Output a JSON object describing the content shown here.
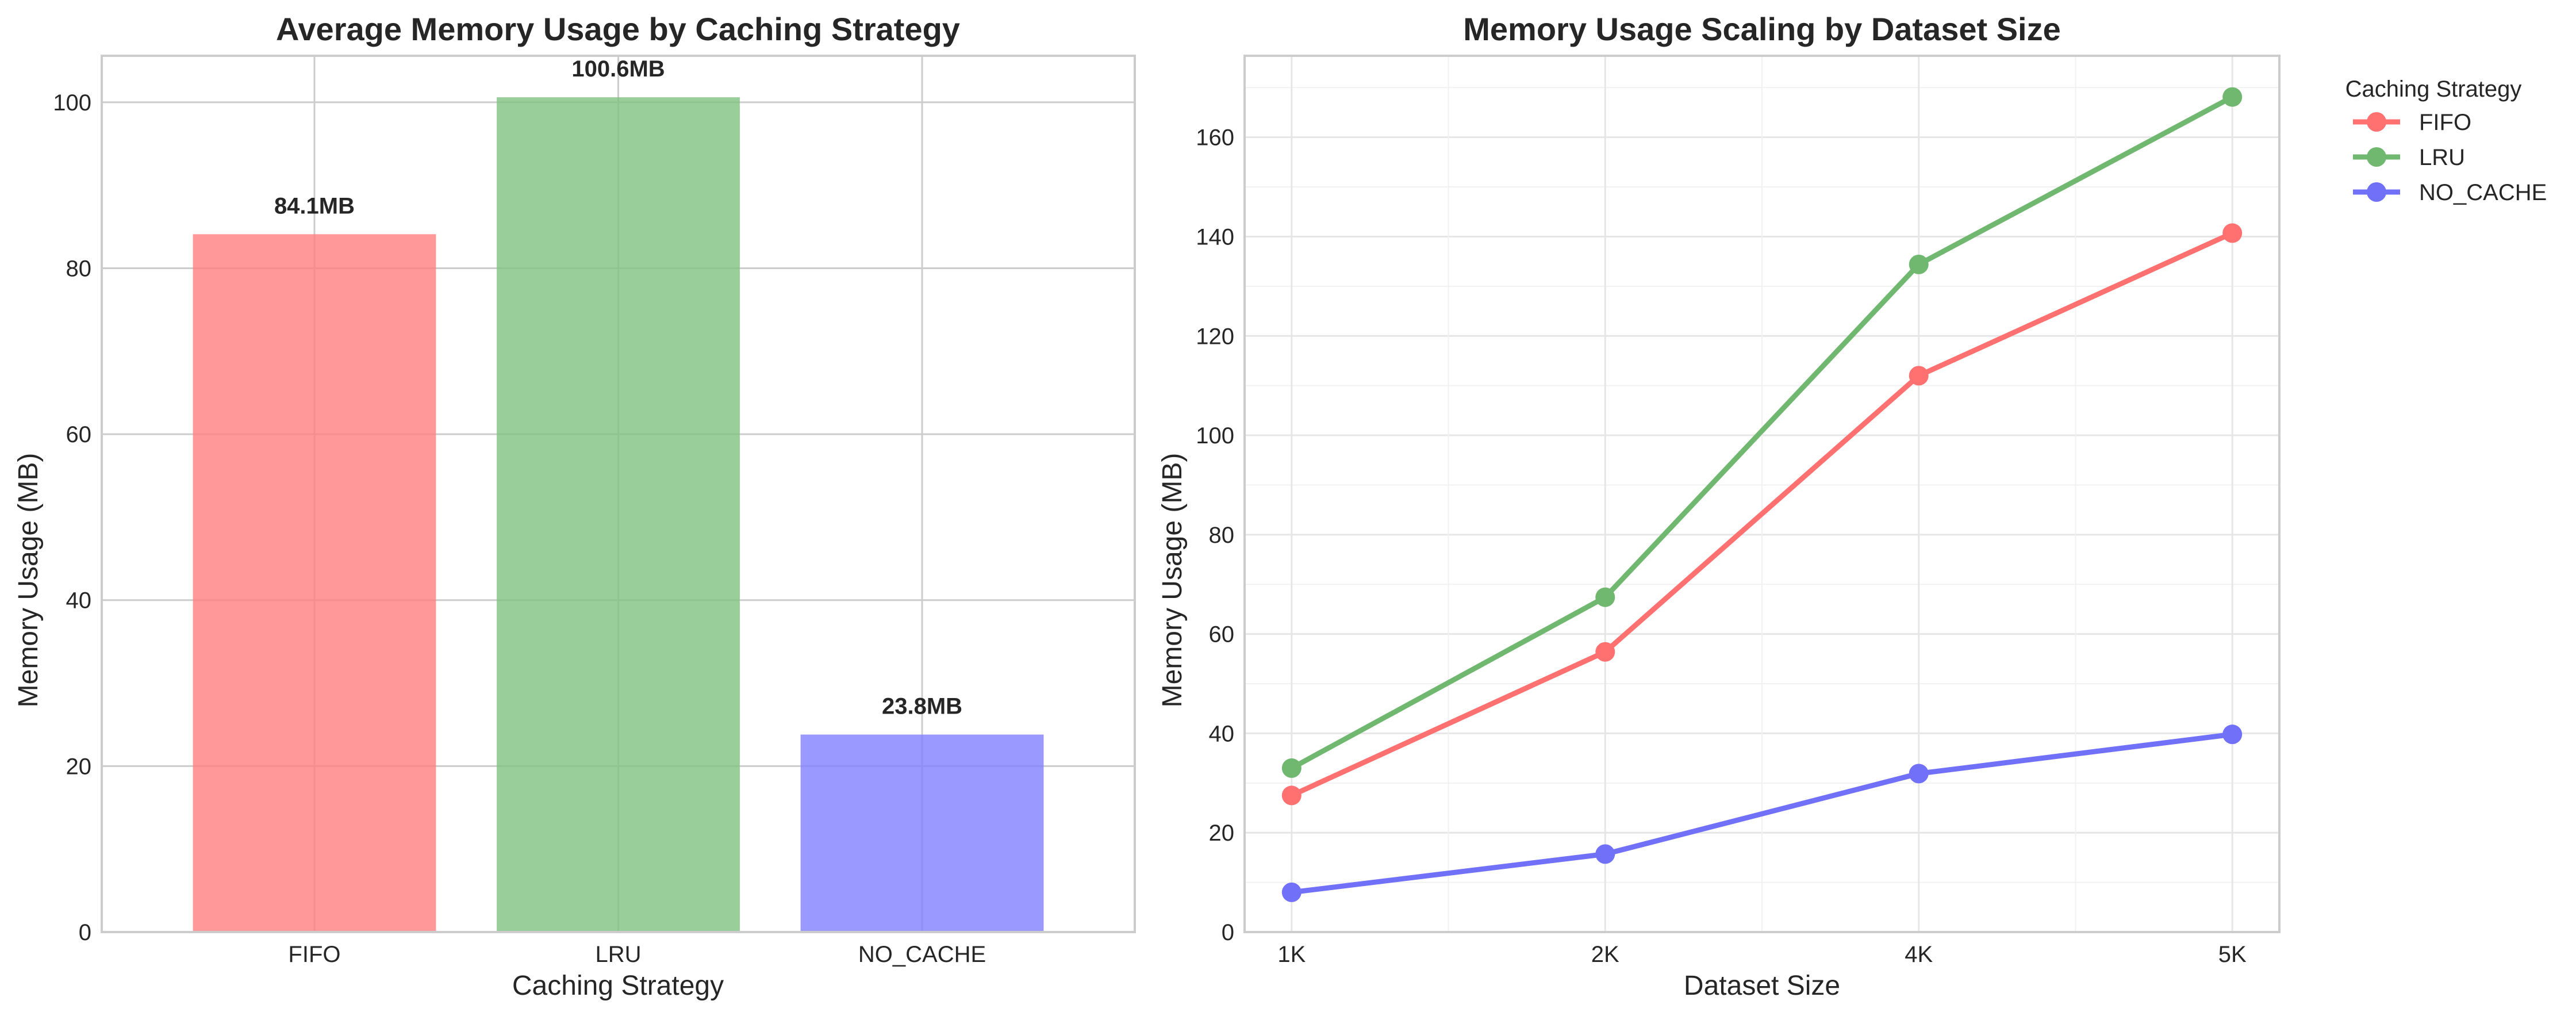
{
  "chart_data": [
    {
      "type": "bar",
      "title": "Average Memory Usage by Caching Strategy",
      "xlabel": "Caching Strategy",
      "ylabel": "Memory Usage (MB)",
      "categories": [
        "FIFO",
        "LRU",
        "NO_CACHE"
      ],
      "values": [
        84.1,
        100.6,
        23.8
      ],
      "value_labels": [
        "84.1MB",
        "100.6MB",
        "23.8MB"
      ],
      "colors": [
        "#ff8080",
        "#80c080",
        "#8080ff"
      ],
      "ylim": [
        0,
        105.6
      ],
      "yticks": [
        0,
        20,
        40,
        60,
        80,
        100
      ],
      "grid": true,
      "legend": "none"
    },
    {
      "type": "line",
      "title": "Memory Usage Scaling by Dataset Size",
      "xlabel": "Dataset Size",
      "ylabel": "Memory Usage (MB)",
      "categories": [
        "1K",
        "2K",
        "4K",
        "5K"
      ],
      "legend_title": "Caching Strategy",
      "legend": "outside-top-right",
      "series": [
        {
          "name": "FIFO",
          "color": "#ff7070",
          "values": [
            27.5,
            56.4,
            112.0,
            140.7
          ]
        },
        {
          "name": "LRU",
          "color": "#70b870",
          "values": [
            33.0,
            67.4,
            134.4,
            168.1
          ]
        },
        {
          "name": "NO_CACHE",
          "color": "#7070f8",
          "values": [
            8.0,
            15.7,
            31.9,
            39.8
          ]
        }
      ],
      "ylim": [
        0,
        176.4
      ],
      "yticks": [
        0,
        20,
        40,
        60,
        80,
        100,
        120,
        140,
        160
      ],
      "grid": true
    }
  ]
}
